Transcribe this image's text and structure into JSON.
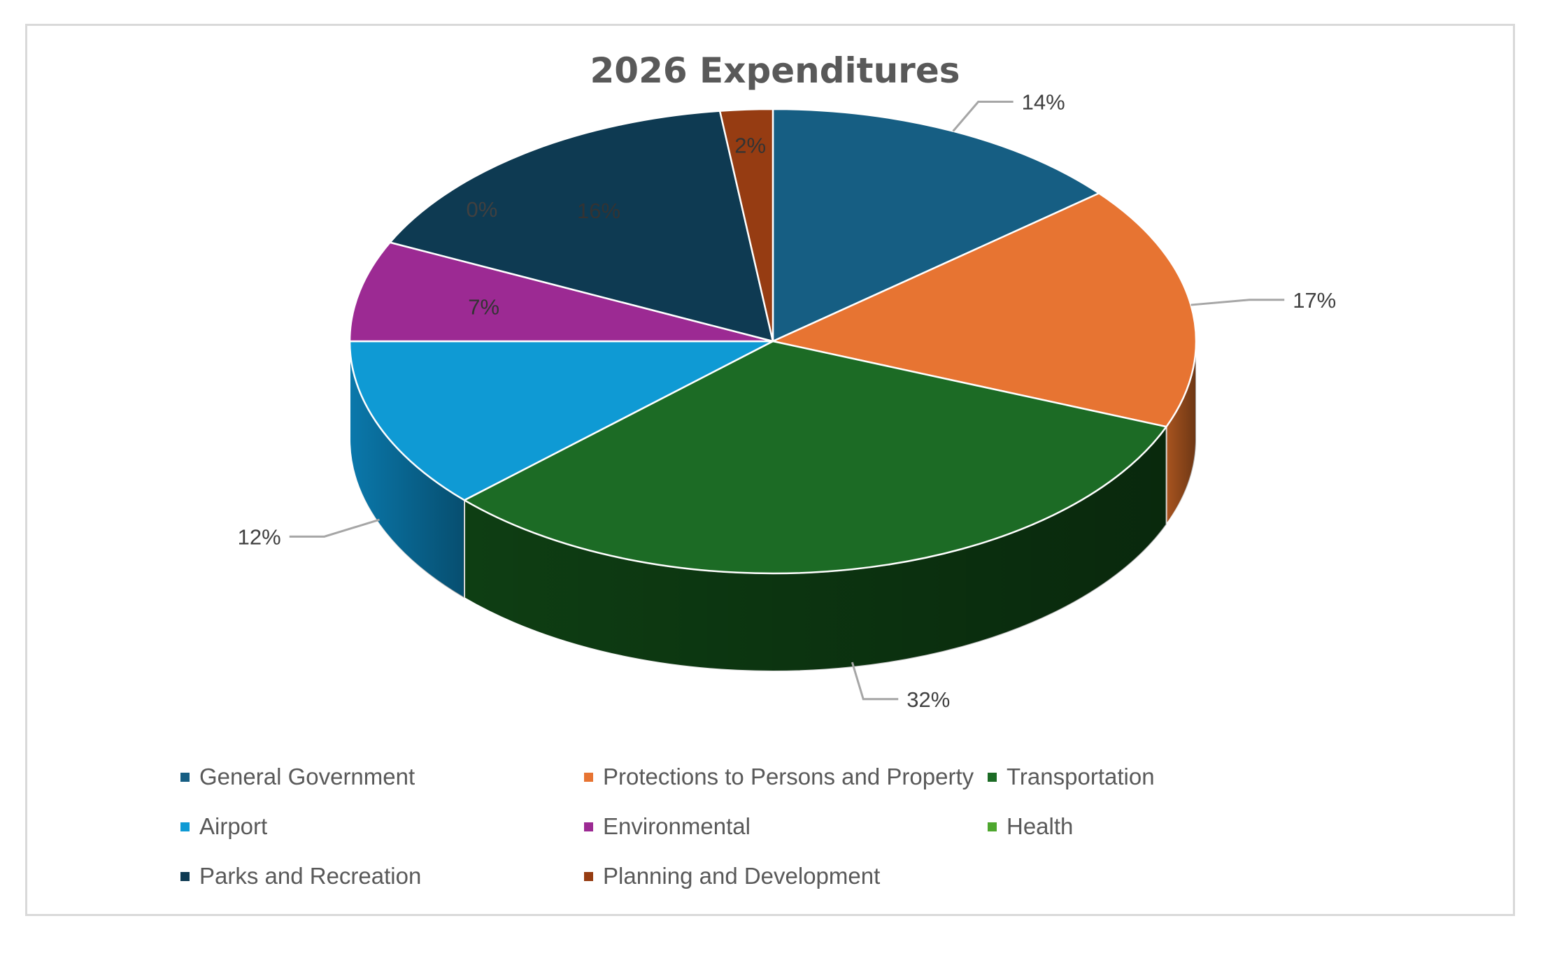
{
  "chart_data": {
    "type": "pie",
    "title": "2026 Expenditures",
    "categories": [
      "General Government",
      "Protections to Persons and Property",
      "Transportation",
      "Airport",
      "Environmental",
      "Health",
      "Parks and Recreation",
      "Planning and Development"
    ],
    "values": [
      14,
      17,
      32,
      12,
      7,
      0,
      16,
      2
    ],
    "data_labels": [
      "14%",
      "17%",
      "32%",
      "12%",
      "7%",
      "0%",
      "16%",
      "2%"
    ],
    "colors": [
      "#165E83",
      "#E77432",
      "#1C6B25",
      "#0F9AD4",
      "#9C2A93",
      "#4EA72E",
      "#0E3A52",
      "#963C12"
    ],
    "side_colors": [
      "#0F4462",
      "#A8541F",
      "#0E3E13",
      "#0A78AB",
      "#6E1D68",
      "#3A7F22",
      "#092838",
      "#6B2A0C"
    ],
    "legend_position": "bottom",
    "style": "3d"
  }
}
